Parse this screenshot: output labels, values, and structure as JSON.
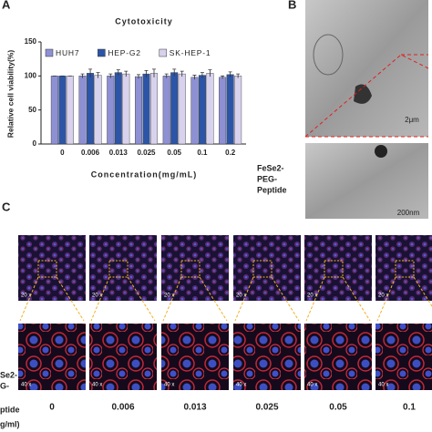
{
  "chart_data": {
    "type": "bar",
    "title": "Cytotoxicity",
    "y_label": "Relative cell viability(%)",
    "x_label": "Concentration(mg/mL)",
    "categories": [
      "0",
      "0.006",
      "0.013",
      "0.025",
      "0.05",
      "0.1",
      "0.2"
    ],
    "series": [
      {
        "name": "HUH7",
        "color": "#8e90d4",
        "values": [
          100,
          100,
          100,
          99,
          100,
          98,
          98
        ],
        "errors": [
          0,
          3,
          3,
          3,
          3,
          3,
          2
        ]
      },
      {
        "name": "HEP-G2",
        "color": "#2c55a8",
        "values": [
          100,
          104,
          105,
          103,
          105,
          101,
          102
        ],
        "errors": [
          0,
          6,
          4,
          5,
          5,
          4,
          4
        ]
      },
      {
        "name": "SK-HEP-1",
        "color": "#d9d2ee",
        "values": [
          100,
          101,
          103,
          104,
          103,
          104,
          100
        ],
        "errors": [
          0,
          4,
          4,
          6,
          4,
          5,
          3
        ]
      }
    ],
    "ylim": [
      0,
      150
    ],
    "yticks": [
      0,
      50,
      100,
      150
    ],
    "legend": "top"
  },
  "panel_labels": [
    "A",
    "B",
    "C"
  ],
  "panel_b": {
    "scale_bars": [
      "2μm",
      "200nm"
    ],
    "sample_label": [
      "FeSe2-",
      "PEG-",
      "Peptide"
    ]
  },
  "panel_c": {
    "magnifications": [
      "20 x",
      "40 x"
    ],
    "concentrations": [
      "0",
      "0.006",
      "0.013",
      "0.025",
      "0.05",
      "0.1"
    ],
    "axis_label": [
      "Se2-",
      "G-",
      "ptide",
      "g/ml)"
    ]
  }
}
